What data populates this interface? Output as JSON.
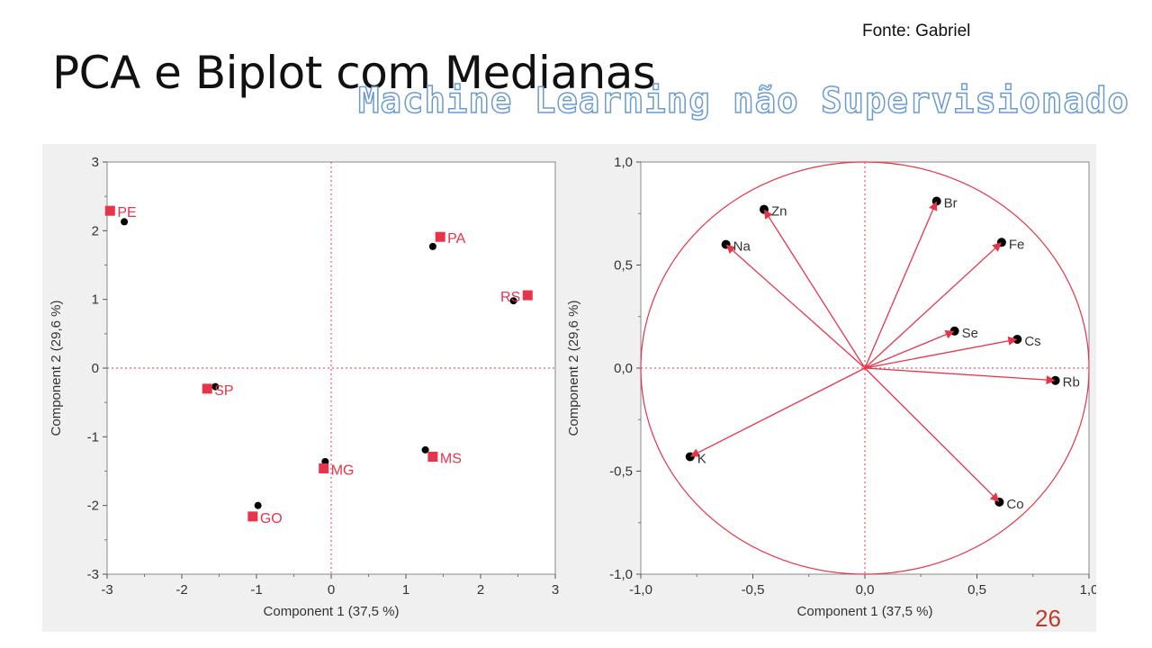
{
  "slide": {
    "source": "Fonte: Gabriel",
    "title": "PCA e Biplot com Medianas",
    "subtitle": "Machine Learning não Supervisionado",
    "page_number": "26"
  },
  "colors": {
    "marker_red": "#e8334a",
    "point_black": "#000000",
    "ref_line": "#e8334a",
    "vector": "#e8334a",
    "circle": "#e8334a",
    "axis_text": "#333333",
    "panel_bg": "#f0f0f0"
  },
  "chart_data": [
    {
      "type": "scatter",
      "title": "",
      "xlabel": "Component 1  (37,5 %)",
      "ylabel": "Component 2  (29,6 %)",
      "xlim": [
        -3,
        3
      ],
      "ylim": [
        -3,
        3
      ],
      "xticks": [
        "-3",
        "-2",
        "-1",
        "0",
        "1",
        "2",
        "3"
      ],
      "yticks": [
        "3",
        "2",
        "1",
        "0",
        "-1",
        "-2",
        "-3"
      ],
      "reference_lines": "dotted at x=0 and y=0",
      "grid": false,
      "series": [
        {
          "marker": "square",
          "points": [
            {
              "label": "PE",
              "x": -2.96,
              "y": 2.29
            },
            {
              "label": "PA",
              "x": 1.46,
              "y": 1.91
            },
            {
              "label": "RS",
              "x": 2.63,
              "y": 1.06
            },
            {
              "label": "SP",
              "x": -1.66,
              "y": -0.3
            },
            {
              "label": "MG",
              "x": -0.1,
              "y": -1.46
            },
            {
              "label": "MS",
              "x": 1.36,
              "y": -1.29
            },
            {
              "label": "GO",
              "x": -1.05,
              "y": -2.16
            }
          ]
        },
        {
          "marker": "circle",
          "points": [
            {
              "x": -2.77,
              "y": 2.13
            },
            {
              "x": 1.36,
              "y": 1.77
            },
            {
              "x": 2.44,
              "y": 0.98
            },
            {
              "x": -1.55,
              "y": -0.27
            },
            {
              "x": -0.08,
              "y": -1.36
            },
            {
              "x": 1.26,
              "y": -1.19
            },
            {
              "x": -0.98,
              "y": -2.0
            }
          ]
        }
      ]
    },
    {
      "type": "scatter",
      "title": "",
      "xlabel": "Component 1  (37,5 %)",
      "ylabel": "Component 2  (29,6 %)",
      "xlim": [
        -1.0,
        1.0
      ],
      "ylim": [
        -1.0,
        1.0
      ],
      "xticks": [
        "-1,0",
        "-0,5",
        "0,0",
        "0,5",
        "1,0"
      ],
      "yticks": [
        "1,0",
        "0,5",
        "0,0",
        "-0,5",
        "-1,0"
      ],
      "reference_lines": "dotted at x=0 and y=0",
      "unit_circle": true,
      "grid": false,
      "loadings": [
        {
          "label": "Br",
          "x": 0.32,
          "y": 0.81
        },
        {
          "label": "Zn",
          "x": -0.45,
          "y": 0.77
        },
        {
          "label": "Na",
          "x": -0.62,
          "y": 0.6
        },
        {
          "label": "Fe",
          "x": 0.61,
          "y": 0.61
        },
        {
          "label": "Se",
          "x": 0.4,
          "y": 0.18
        },
        {
          "label": "Cs",
          "x": 0.68,
          "y": 0.14
        },
        {
          "label": "Rb",
          "x": 0.85,
          "y": -0.06
        },
        {
          "label": "K",
          "x": -0.78,
          "y": -0.43
        },
        {
          "label": "Co",
          "x": 0.6,
          "y": -0.65
        }
      ]
    }
  ]
}
